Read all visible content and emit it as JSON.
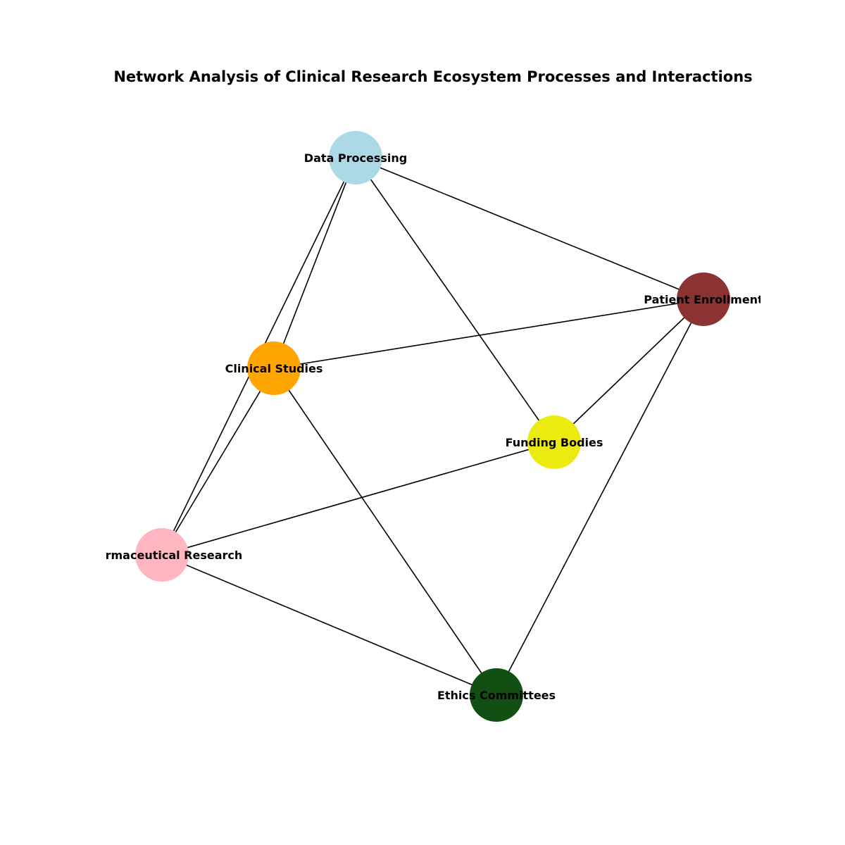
{
  "title": "Network Analysis of Clinical Research Ecosystem Processes and Interactions",
  "nodes": [
    {
      "id": "data-processing",
      "label": "Data Processing",
      "color": "#add8e6"
    },
    {
      "id": "patient-enrollment",
      "label": "Patient Enrollment",
      "color": "#8b3232"
    },
    {
      "id": "clinical-studies",
      "label": "Clinical Studies",
      "color": "#ffa500"
    },
    {
      "id": "funding-bodies",
      "label": "Funding Bodies",
      "color": "#ebeb10"
    },
    {
      "id": "pharmaceutical-research",
      "label": "Pharmaceutical Research",
      "color": "#ffb6c1"
    },
    {
      "id": "ethics-committees",
      "label": "Ethics Committees",
      "color": "#124f12"
    }
  ],
  "edges": [
    {
      "source": "data-processing",
      "target": "patient-enrollment"
    },
    {
      "source": "data-processing",
      "target": "clinical-studies"
    },
    {
      "source": "data-processing",
      "target": "funding-bodies"
    },
    {
      "source": "data-processing",
      "target": "pharmaceutical-research"
    },
    {
      "source": "patient-enrollment",
      "target": "clinical-studies"
    },
    {
      "source": "patient-enrollment",
      "target": "funding-bodies"
    },
    {
      "source": "patient-enrollment",
      "target": "ethics-committees"
    },
    {
      "source": "clinical-studies",
      "target": "pharmaceutical-research"
    },
    {
      "source": "clinical-studies",
      "target": "ethics-committees"
    },
    {
      "source": "funding-bodies",
      "target": "pharmaceutical-research"
    },
    {
      "source": "pharmaceutical-research",
      "target": "ethics-committees"
    }
  ]
}
